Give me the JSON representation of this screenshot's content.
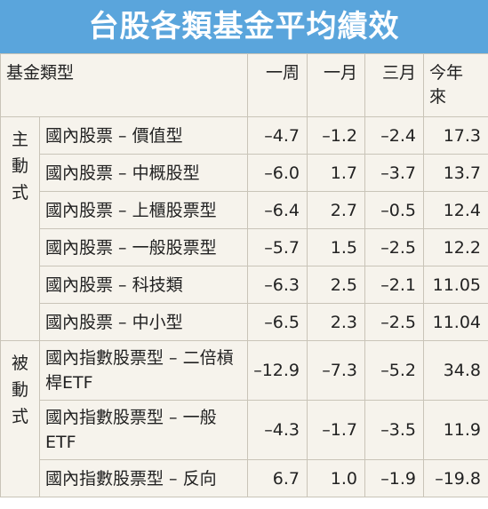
{
  "title": "台股各類基金平均績效",
  "table": {
    "header": [
      "基金類型",
      "一周",
      "一月",
      "三月",
      "今年來"
    ],
    "groups": [
      {
        "label": "主動式",
        "rows": [
          [
            "國內股票 – 價值型",
            "–4.7",
            "–1.2",
            "–2.4",
            "17.3"
          ],
          [
            "國內股票 – 中概股型",
            "–6.0",
            "1.7",
            "–3.7",
            "13.7"
          ],
          [
            "國內股票 – 上櫃股票型",
            "–6.4",
            "2.7",
            "–0.5",
            "12.4"
          ],
          [
            "國內股票 – 一般股票型",
            "–5.7",
            "1.5",
            "–2.5",
            "12.2"
          ],
          [
            "國內股票 – 科技類",
            "–6.3",
            "2.5",
            "–2.1",
            "11.05"
          ],
          [
            "國內股票 – 中小型",
            "–6.5",
            "2.3",
            "–2.5",
            "11.04"
          ]
        ]
      },
      {
        "label": "被動式",
        "rows": [
          [
            "國內指數股票型 – 二倍槓桿ETF",
            "–12.9",
            "–7.3",
            "–5.2",
            "34.8"
          ],
          [
            "國內指數股票型 – 一般ETF",
            "–4.3",
            "–1.7",
            "–3.5",
            "11.9"
          ],
          [
            "國內指數股票型 – 反向",
            "6.7",
            "1.0",
            "–1.9",
            "–19.8"
          ]
        ]
      }
    ]
  }
}
